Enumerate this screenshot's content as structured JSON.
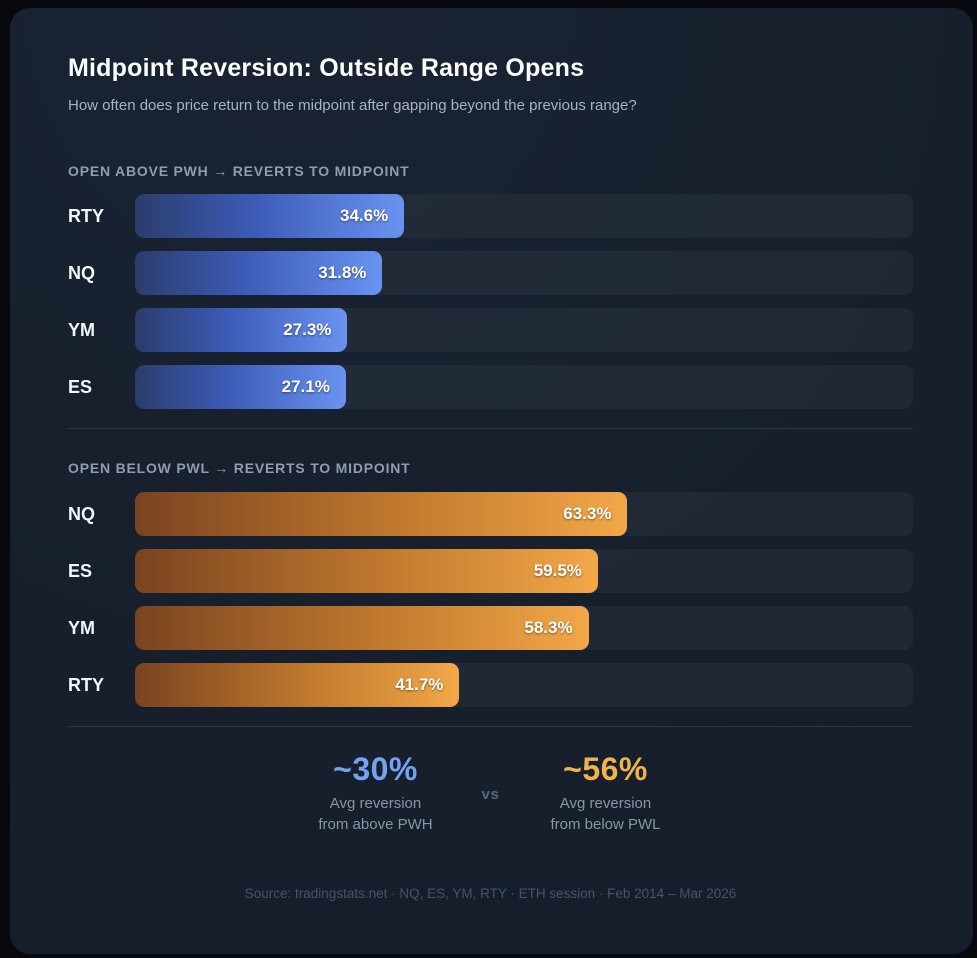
{
  "header": {
    "title": "Midpoint Reversion: Outside Range Opens",
    "subtitle": "How often does price return to the midpoint after gapping beyond the previous range?"
  },
  "chart_data": [
    {
      "type": "bar",
      "orientation": "horizontal",
      "title": "OPEN ABOVE PWH → REVERTS TO MIDPOINT",
      "categories": [
        "RTY",
        "NQ",
        "YM",
        "ES"
      ],
      "values": [
        34.6,
        31.8,
        27.3,
        27.1
      ],
      "labels": [
        "34.6%",
        "31.8%",
        "27.3%",
        "27.1%"
      ],
      "unit": "%",
      "xlim": [
        0,
        100
      ],
      "grid": "off",
      "bar_gradient": [
        "#2b3c6c",
        "#6a93f0"
      ]
    },
    {
      "type": "bar",
      "orientation": "horizontal",
      "title": "OPEN BELOW PWL → REVERTS TO MIDPOINT",
      "categories": [
        "NQ",
        "ES",
        "YM",
        "RTY"
      ],
      "values": [
        63.3,
        59.5,
        58.3,
        41.7
      ],
      "labels": [
        "63.3%",
        "59.5%",
        "58.3%",
        "41.7%"
      ],
      "unit": "%",
      "xlim": [
        0,
        100
      ],
      "grid": "off",
      "bar_gradient": [
        "#7a4320",
        "#f2a748"
      ]
    }
  ],
  "summary": {
    "left": {
      "value": "~30%",
      "caption_line1": "Avg reversion",
      "caption_line2": "from above PWH"
    },
    "separator": "vs",
    "right": {
      "value": "~56%",
      "caption_line1": "Avg reversion",
      "caption_line2": "from below PWL"
    }
  },
  "footer": {
    "text": "Source: tradingstats.net · NQ, ES, YM, RTY · ETH session · Feb 2014 – Mar 2026"
  },
  "colors": {
    "page_background": "#07090e",
    "card_background": "#18202e",
    "bar_track": "#212b3a",
    "divider": "#2a3548",
    "title": "#fafcfe",
    "subtitle": "#a7b3c3",
    "section_heading": "#8e9db2",
    "row_label": "#f3f6fa",
    "bar_value_text": "#ffffff",
    "blue_accent": "#75a2f3",
    "orange_accent": "#f0b24c",
    "vs_text": "#5b6777",
    "caption_text": "#8995a5",
    "footer_text": "#44536c"
  }
}
